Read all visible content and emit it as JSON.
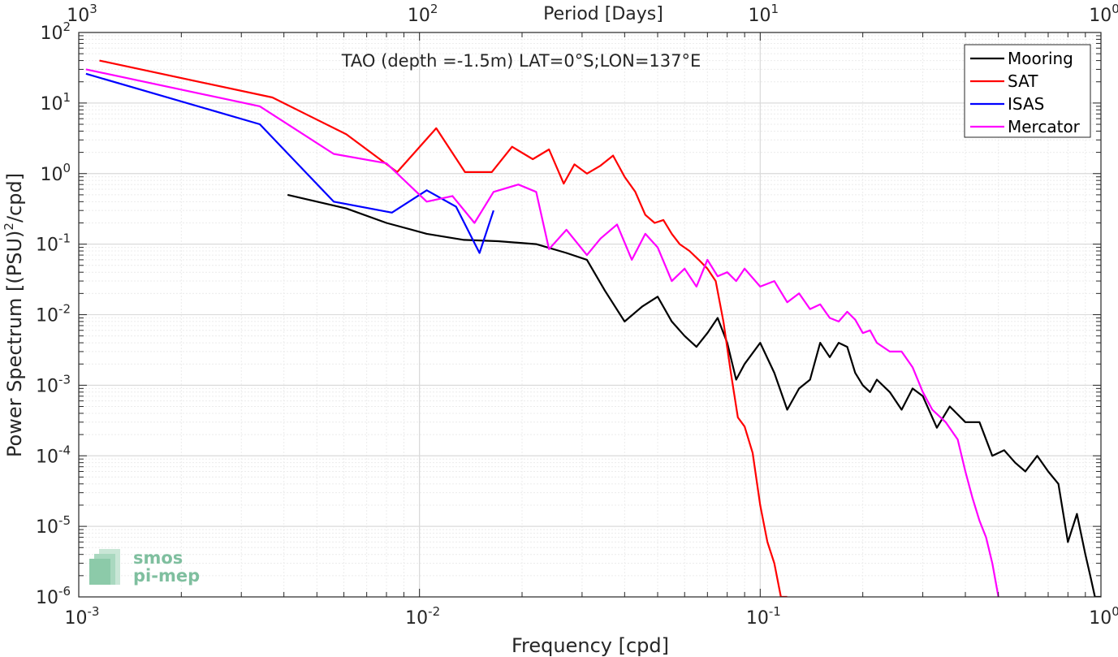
{
  "chart_data": {
    "type": "line",
    "title": "TAO (depth =-1.5m) LAT=0°S;LON=137°E",
    "xlabel": "Frequency [cpd]",
    "ylabel": "Power Spectrum [(PSU)",
    "ylabel_sup": "2",
    "ylabel_tail": "/cpd]",
    "x2label": "Period [Days]",
    "xscale": "log",
    "yscale": "log",
    "xlim": [
      0.001,
      1
    ],
    "ylim": [
      1e-06,
      100
    ],
    "grid": true,
    "legend_position": "top-right",
    "x_ticks": [
      {
        "base": "10",
        "exp": "-3"
      },
      {
        "base": "10",
        "exp": "-2"
      },
      {
        "base": "10",
        "exp": "-1"
      },
      {
        "base": "10",
        "exp": "0"
      }
    ],
    "x2_ticks": [
      {
        "base": "10",
        "exp": "3"
      },
      {
        "base": "10",
        "exp": "2"
      },
      {
        "base": "10",
        "exp": "1"
      },
      {
        "base": "10",
        "exp": "0"
      }
    ],
    "y_ticks": [
      {
        "base": "10",
        "exp": "2"
      },
      {
        "base": "10",
        "exp": "1"
      },
      {
        "base": "10",
        "exp": "0"
      },
      {
        "base": "10",
        "exp": "-1"
      },
      {
        "base": "10",
        "exp": "-2"
      },
      {
        "base": "10",
        "exp": "-3"
      },
      {
        "base": "10",
        "exp": "-4"
      },
      {
        "base": "10",
        "exp": "-5"
      },
      {
        "base": "10",
        "exp": "-6"
      }
    ],
    "series": [
      {
        "name": "Mooring",
        "color": "#000000",
        "x": [
          0.0041,
          0.0061,
          0.008,
          0.0105,
          0.0135,
          0.017,
          0.022,
          0.027,
          0.031,
          0.035,
          0.04,
          0.045,
          0.05,
          0.055,
          0.06,
          0.065,
          0.07,
          0.075,
          0.08,
          0.085,
          0.09,
          0.1,
          0.11,
          0.12,
          0.13,
          0.14,
          0.15,
          0.16,
          0.17,
          0.18,
          0.19,
          0.2,
          0.21,
          0.22,
          0.24,
          0.26,
          0.28,
          0.3,
          0.33,
          0.36,
          0.4,
          0.44,
          0.48,
          0.52,
          0.56,
          0.6,
          0.65,
          0.7,
          0.75,
          0.8,
          0.85,
          0.9,
          0.93,
          0.96,
          1.0
        ],
        "y": [
          0.5,
          0.32,
          0.2,
          0.14,
          0.115,
          0.11,
          0.1,
          0.075,
          0.06,
          0.022,
          0.008,
          0.013,
          0.018,
          0.008,
          0.005,
          0.0035,
          0.0055,
          0.009,
          0.004,
          0.0012,
          0.002,
          0.004,
          0.0015,
          0.00045,
          0.0009,
          0.0012,
          0.004,
          0.0025,
          0.004,
          0.0035,
          0.0015,
          0.001,
          0.0008,
          0.0012,
          0.0008,
          0.00045,
          0.0009,
          0.0007,
          0.00025,
          0.0005,
          0.0003,
          0.0003,
          0.0001,
          0.00012,
          8e-05,
          6e-05,
          0.0001,
          6e-05,
          4e-05,
          6e-06,
          1.5e-05,
          4e-06,
          2e-06,
          1e-06,
          1e-06
        ]
      },
      {
        "name": "SAT",
        "color": "#ff0000",
        "x": [
          0.00115,
          0.0037,
          0.0061,
          0.0086,
          0.0112,
          0.0136,
          0.0163,
          0.0187,
          0.0215,
          0.024,
          0.0265,
          0.0285,
          0.031,
          0.034,
          0.037,
          0.04,
          0.043,
          0.046,
          0.049,
          0.052,
          0.055,
          0.058,
          0.062,
          0.066,
          0.07,
          0.074,
          0.078,
          0.082,
          0.086,
          0.09,
          0.095,
          0.1,
          0.105,
          0.11,
          0.115,
          0.12
        ],
        "y": [
          40,
          12,
          3.6,
          1.05,
          4.4,
          1.05,
          1.05,
          2.4,
          1.6,
          2.2,
          0.72,
          1.35,
          1.0,
          1.3,
          1.8,
          0.9,
          0.55,
          0.26,
          0.2,
          0.22,
          0.14,
          0.1,
          0.08,
          0.06,
          0.045,
          0.03,
          0.008,
          0.0015,
          0.00035,
          0.00026,
          0.00011,
          2e-05,
          6e-06,
          3e-06,
          1e-06,
          1e-06
        ]
      },
      {
        "name": "ISAS",
        "color": "#0000ff",
        "x": [
          0.00105,
          0.0034,
          0.0056,
          0.0083,
          0.0105,
          0.0128,
          0.015,
          0.0165
        ],
        "y": [
          26,
          5.0,
          0.4,
          0.28,
          0.58,
          0.34,
          0.075,
          0.3
        ]
      },
      {
        "name": "Mercator",
        "color": "#ff00ff",
        "x": [
          0.00105,
          0.0034,
          0.0056,
          0.008,
          0.0105,
          0.0125,
          0.0145,
          0.0165,
          0.0195,
          0.022,
          0.024,
          0.027,
          0.031,
          0.034,
          0.038,
          0.042,
          0.046,
          0.05,
          0.055,
          0.06,
          0.065,
          0.07,
          0.075,
          0.08,
          0.085,
          0.09,
          0.1,
          0.11,
          0.12,
          0.13,
          0.14,
          0.15,
          0.16,
          0.17,
          0.18,
          0.19,
          0.2,
          0.21,
          0.22,
          0.24,
          0.26,
          0.28,
          0.3,
          0.32,
          0.35,
          0.38,
          0.4,
          0.42,
          0.44,
          0.46,
          0.48,
          0.5
        ],
        "y": [
          30,
          9,
          1.9,
          1.4,
          0.4,
          0.48,
          0.2,
          0.55,
          0.7,
          0.55,
          0.085,
          0.16,
          0.07,
          0.12,
          0.19,
          0.06,
          0.14,
          0.09,
          0.03,
          0.045,
          0.025,
          0.06,
          0.035,
          0.04,
          0.03,
          0.045,
          0.025,
          0.03,
          0.015,
          0.02,
          0.012,
          0.014,
          0.009,
          0.008,
          0.011,
          0.0085,
          0.0055,
          0.006,
          0.004,
          0.003,
          0.003,
          0.0018,
          0.0008,
          0.00045,
          0.0003,
          0.00017,
          6e-05,
          2.5e-05,
          1.2e-05,
          7e-06,
          3e-06,
          1e-06
        ]
      }
    ]
  },
  "watermark": {
    "line1": "smos",
    "line2": "pi-mep",
    "color": "#7fbf9f"
  }
}
